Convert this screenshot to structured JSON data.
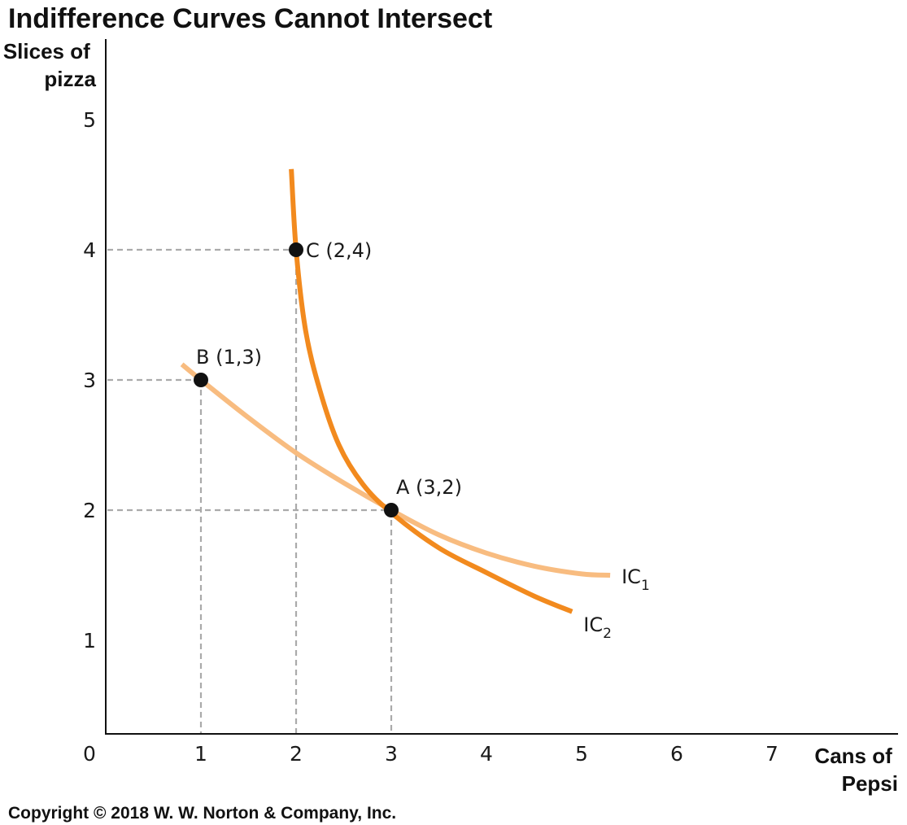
{
  "chart_data": {
    "type": "line",
    "title": "Indifference Curves Cannot Intersect",
    "ylabel_lines": [
      "Slices of",
      "pizza"
    ],
    "xlabel_lines": [
      "Cans of",
      "Pepsi"
    ],
    "x_ticks": [
      "0",
      "1",
      "2",
      "3",
      "4",
      "5",
      "6",
      "7"
    ],
    "y_ticks": [
      "1",
      "2",
      "3",
      "4",
      "5"
    ],
    "xlim": [
      0,
      8.4
    ],
    "ylim": [
      0,
      5.4
    ],
    "grid": false,
    "series": [
      {
        "name": "IC1",
        "label_main": "IC",
        "label_sub": "1",
        "color": "#F8BC80",
        "x": [
          0.8,
          1.0,
          1.5,
          2.0,
          2.5,
          3.0,
          3.5,
          4.0,
          4.5,
          5.0,
          5.3
        ],
        "y": [
          3.12,
          3.0,
          2.71,
          2.44,
          2.21,
          2.0,
          1.81,
          1.67,
          1.57,
          1.51,
          1.5
        ]
      },
      {
        "name": "IC2",
        "label_main": "IC",
        "label_sub": "2",
        "color": "#F28A1E",
        "x": [
          1.95,
          2.0,
          2.1,
          2.25,
          2.45,
          2.7,
          3.0,
          3.5,
          4.0,
          4.5,
          4.9
        ],
        "y": [
          4.62,
          4.0,
          3.38,
          2.92,
          2.5,
          2.2,
          1.98,
          1.71,
          1.52,
          1.34,
          1.22
        ]
      }
    ],
    "points": [
      {
        "name": "A",
        "label": "A (3,2)",
        "x": 3,
        "y": 2
      },
      {
        "name": "B",
        "label": "B (1,3)",
        "x": 1,
        "y": 3
      },
      {
        "name": "C",
        "label": "C (2,4)",
        "x": 2,
        "y": 4
      }
    ],
    "colors": {
      "axis": "#111111",
      "guide": "#aaaaaa",
      "point": "#111111"
    }
  },
  "copyright": "Copyright © 2018 W. W. Norton & Company, Inc."
}
